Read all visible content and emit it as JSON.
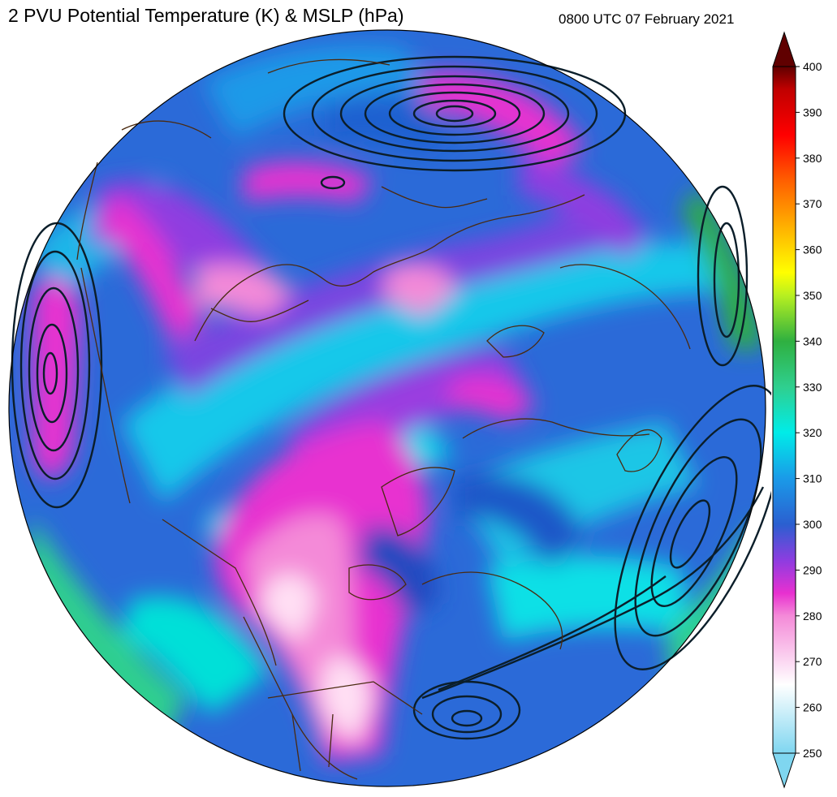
{
  "title": "2 PVU Potential Temperature (K) & MSLP (hPa)",
  "valid_time": "0800 UTC 07 February 2021",
  "colorbar": {
    "min": 250,
    "max": 400,
    "ticks": [
      "250",
      "260",
      "270",
      "280",
      "290",
      "300",
      "310",
      "320",
      "330",
      "340",
      "350",
      "360",
      "370",
      "380",
      "390",
      "400"
    ],
    "extend": "both",
    "colors": {
      "250": "#7fd6f0",
      "265": "#ffffff",
      "280": "#f48ad8",
      "285": "#e830d0",
      "292": "#8f3ce0",
      "300": "#2b5fd0",
      "310": "#1a9ae8",
      "320": "#00ece8",
      "330": "#2fcf8f",
      "340": "#2fb040",
      "350": "#b8f020",
      "355": "#ffff00",
      "365": "#ffb000",
      "375": "#ff6000",
      "385": "#ff0000",
      "395": "#c00000",
      "400": "#600000"
    }
  },
  "map": {
    "projection": "orthographic-north-polar",
    "coastline_color": "#4a2a10",
    "mslp_contour_color": "#0b1e2a"
  }
}
